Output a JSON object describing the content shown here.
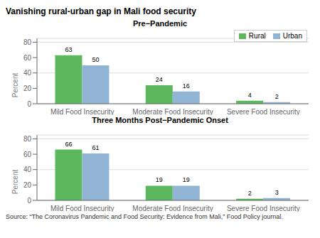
{
  "title": "Vanishing rural-urban gap in Mali food security",
  "annotations": [
    "Source: “The Coronavirus Pandemic and Food Security: Evidence from Mali,” Food Policy journal."
  ],
  "chart_data": [
    {
      "type": "bar",
      "title": "Pre−Pandemic",
      "categories": [
        "Mild Food Insecurity",
        "Moderate Food Insecurity",
        "Severe Food Insecurity"
      ],
      "series": [
        {
          "name": "Rural",
          "color": "#5cb85c",
          "values": [
            63,
            24,
            4
          ]
        },
        {
          "name": "Urban",
          "color": "#92b4d4",
          "values": [
            50,
            16,
            2
          ]
        }
      ],
      "ylabel": "Percent",
      "ylim": [
        0,
        85
      ],
      "yticks": [
        0,
        20,
        40,
        60,
        80
      ],
      "grid": true,
      "data_labels": true,
      "legend": "upper right"
    },
    {
      "type": "bar",
      "title": "Three Months Post−Pandemic Onset",
      "categories": [
        "Mild Food Insecurity",
        "Moderate Food Insecurity",
        "Severe Food Insecurity"
      ],
      "series": [
        {
          "name": "Rural",
          "color": "#5cb85c",
          "values": [
            66,
            19,
            2
          ]
        },
        {
          "name": "Urban",
          "color": "#92b4d4",
          "values": [
            61,
            19,
            3
          ]
        }
      ],
      "ylabel": "Percent",
      "ylim": [
        0,
        85
      ],
      "yticks": [
        0,
        20,
        40,
        60,
        80
      ],
      "grid": true,
      "data_labels": true
    }
  ]
}
